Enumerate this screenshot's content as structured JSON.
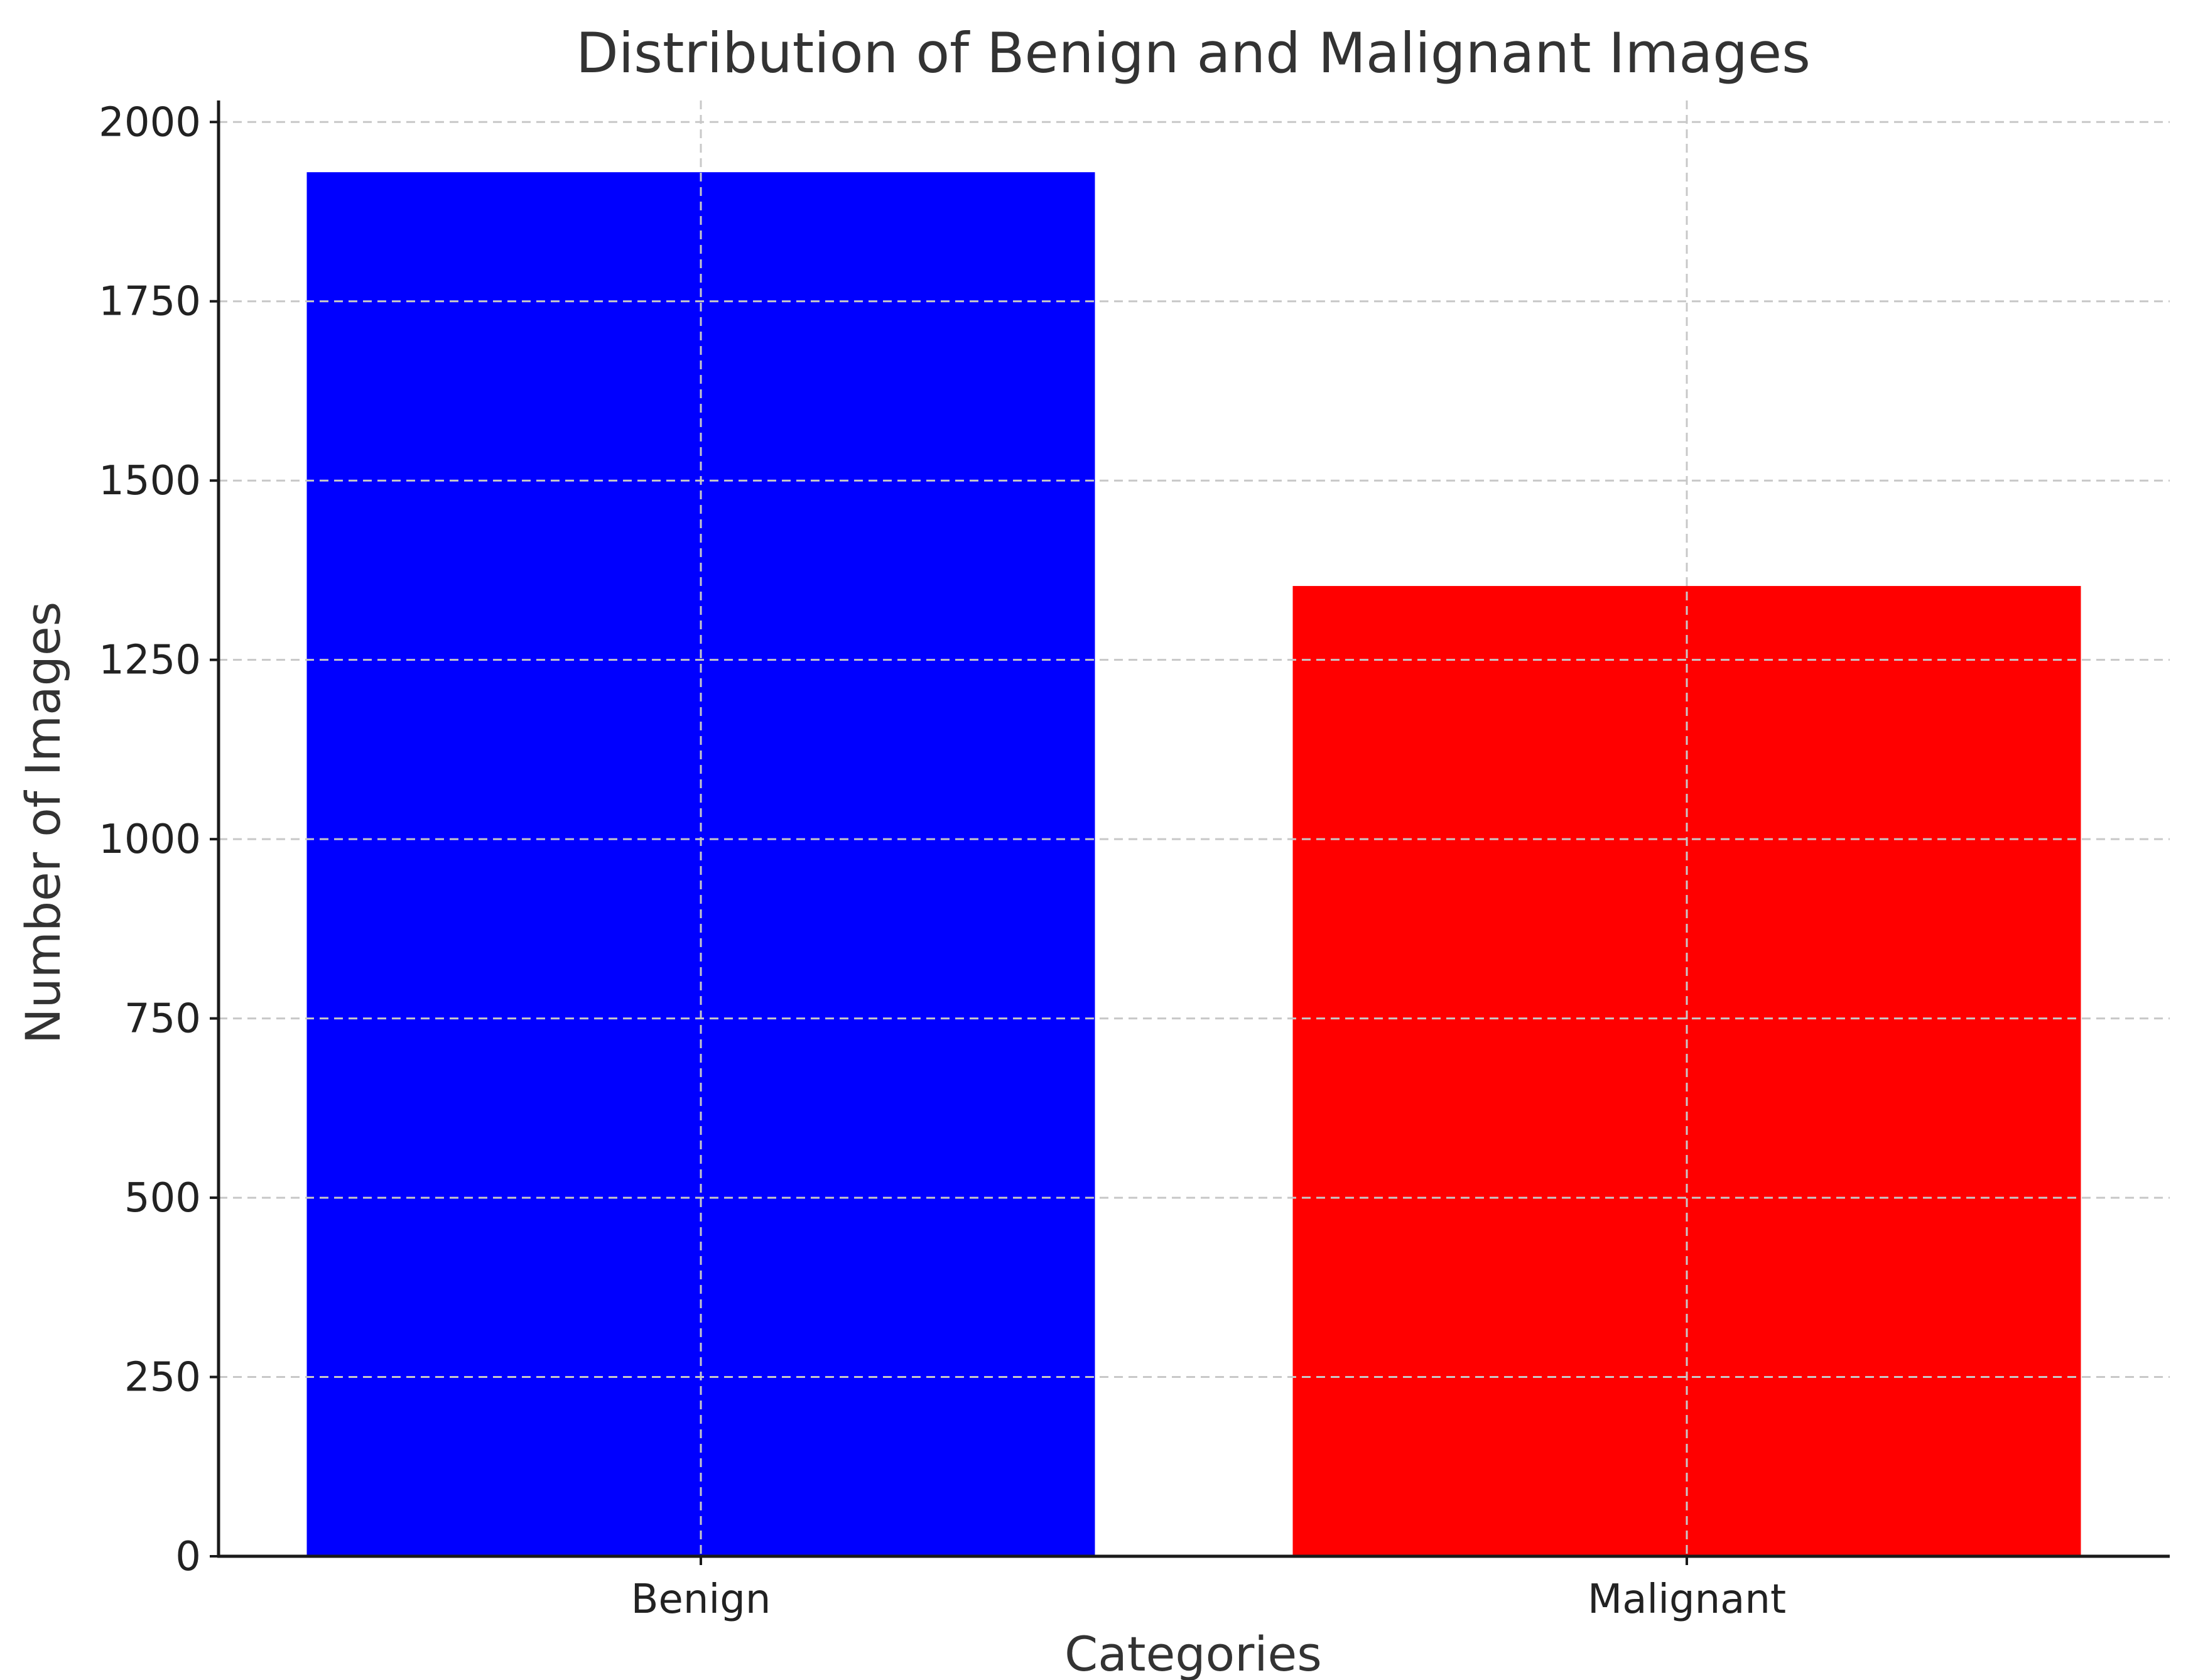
{
  "chart_data": {
    "type": "bar",
    "title": "Distribution of Benign and Malignant Images",
    "xlabel": "Categories",
    "ylabel": "Number of Images",
    "categories": [
      "Benign",
      "Malignant"
    ],
    "values": [
      1930,
      1353
    ],
    "colors": [
      "#0000ff",
      "#ff0000"
    ],
    "ylim": [
      0,
      2030
    ],
    "yticks": [
      0,
      250,
      500,
      750,
      1000,
      1250,
      1500,
      1750,
      2000
    ],
    "grid": true
  }
}
